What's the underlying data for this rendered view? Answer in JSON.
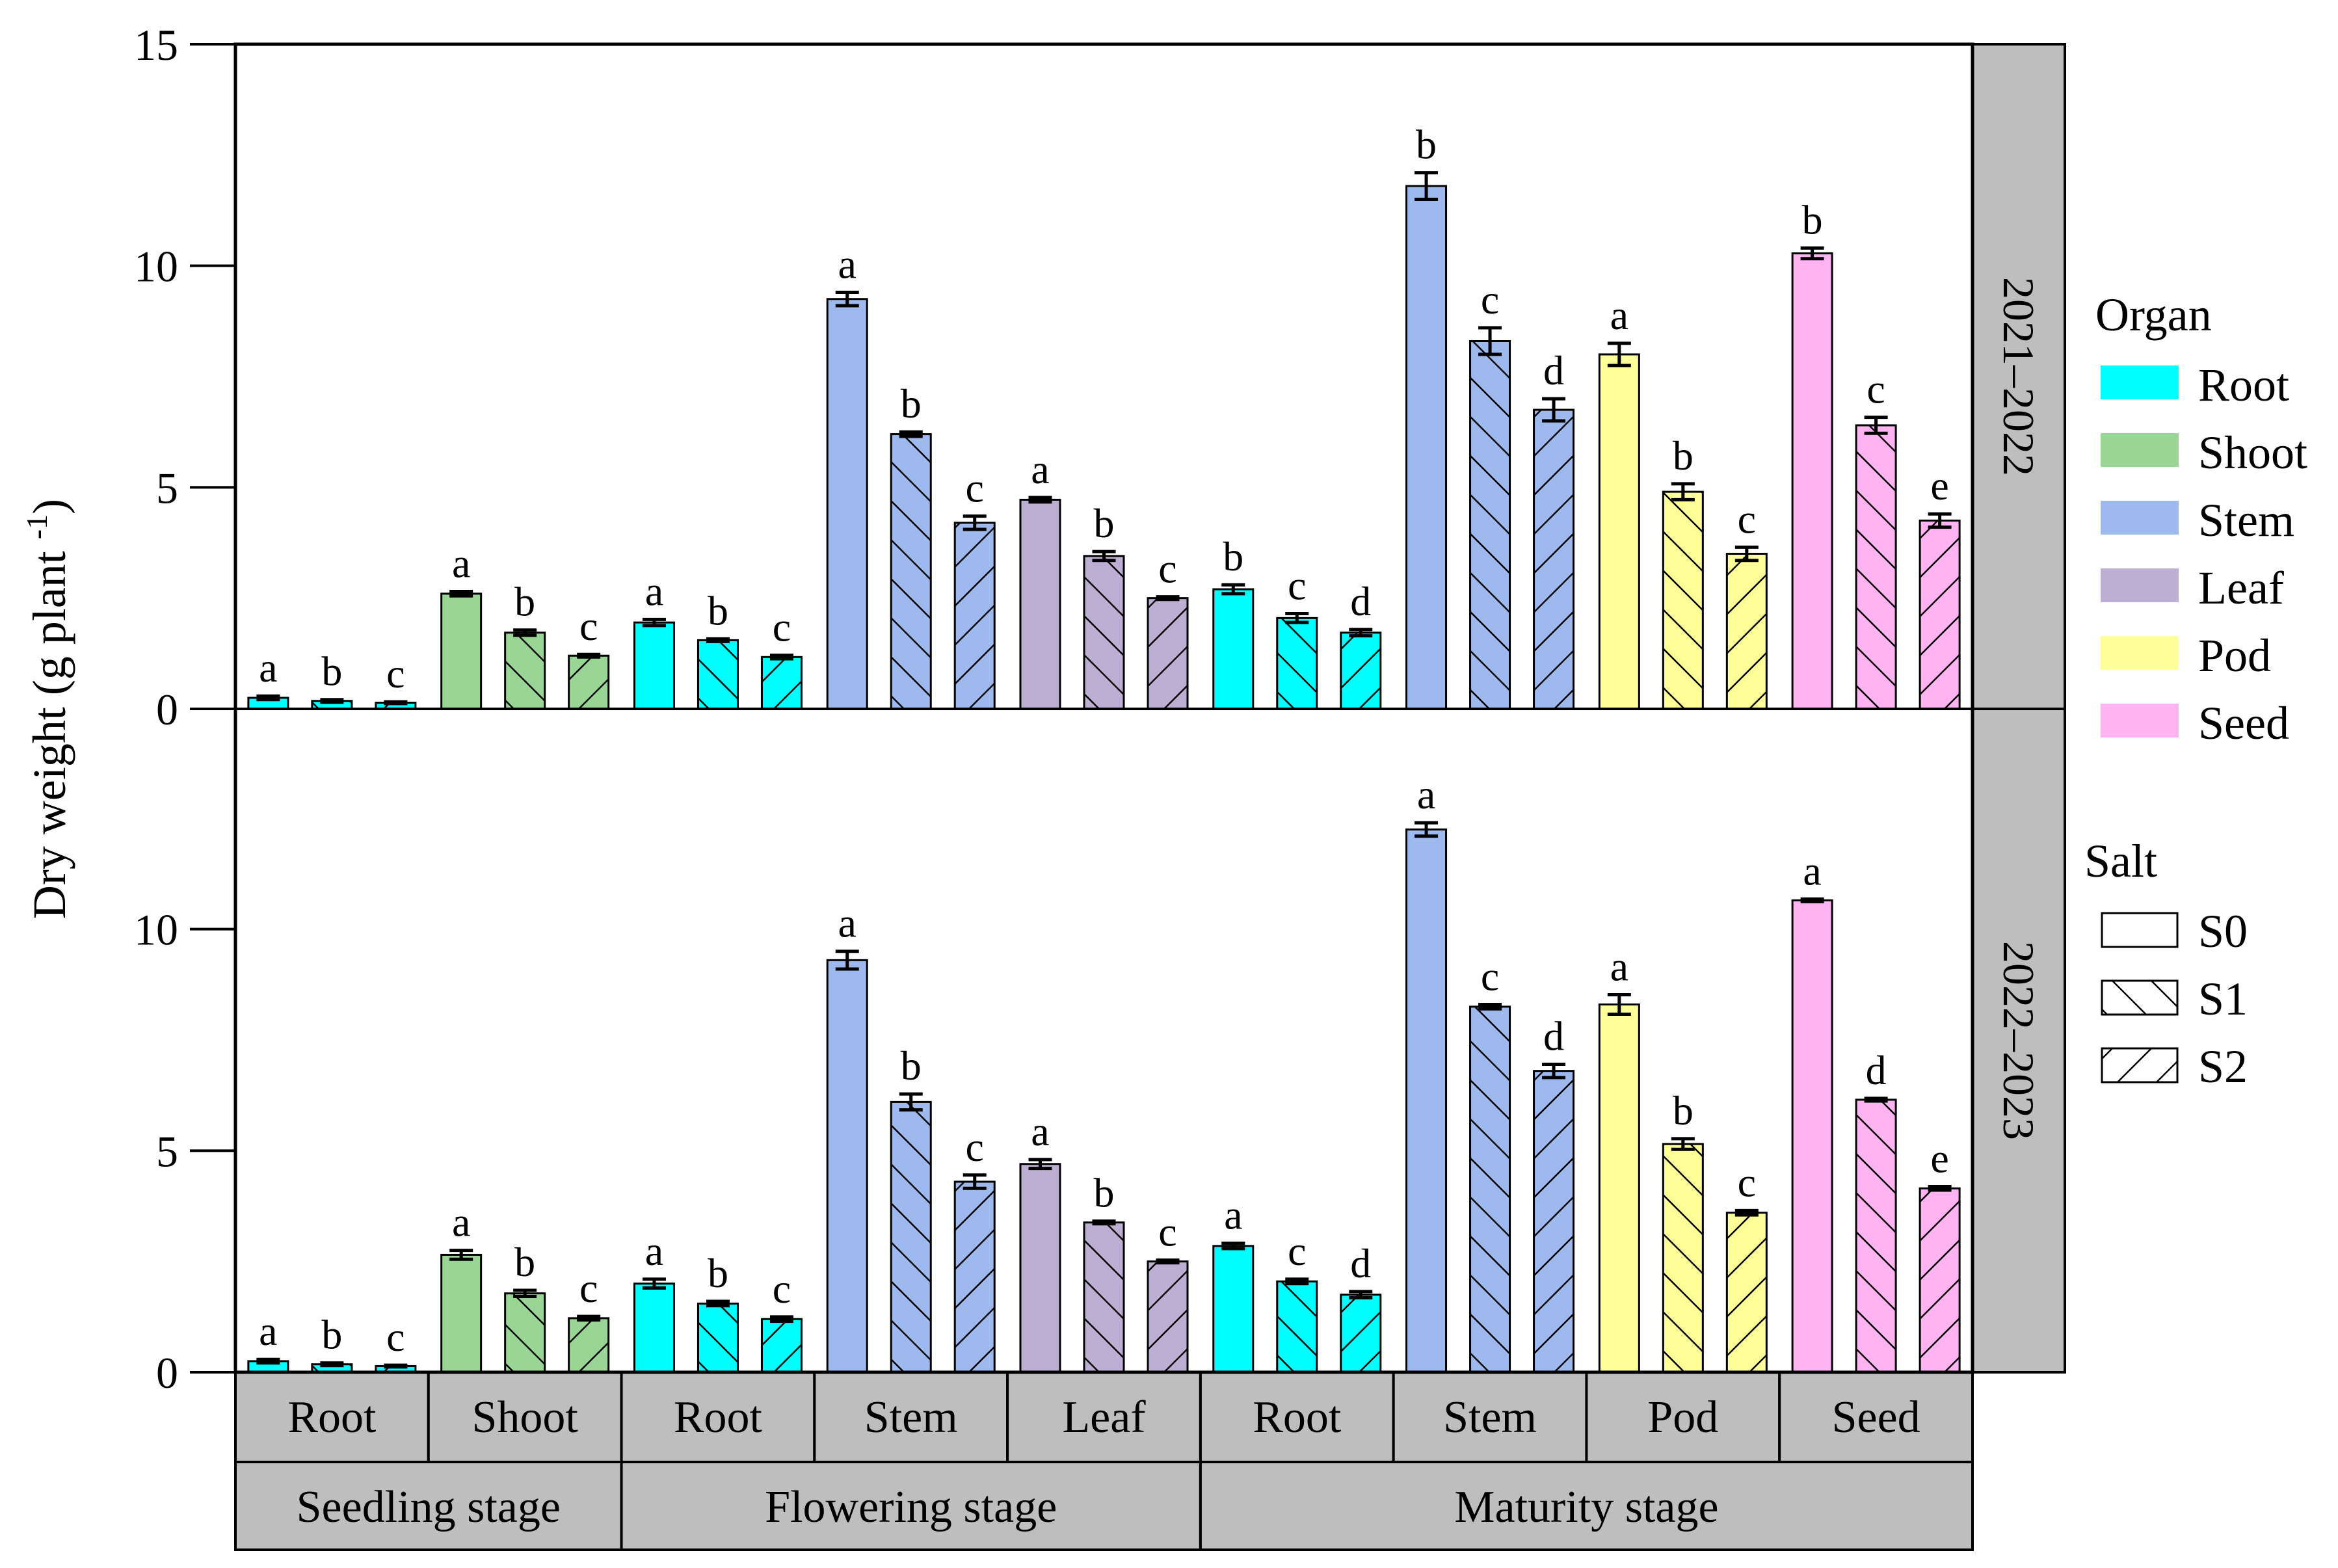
{
  "chart_data": {
    "type": "bar",
    "ylabel_main": "Dry weight (g plant",
    "ylabel_sup": "-1",
    "ylabel_end": ")",
    "ylim": [
      0,
      15
    ],
    "yticks": [
      "0",
      "5",
      "10",
      "15"
    ],
    "panels": [
      {
        "label": "2021–2022",
        "values": [
          0.25,
          0.18,
          0.14,
          2.6,
          1.72,
          1.2,
          1.95,
          1.55,
          1.17,
          9.25,
          6.2,
          4.2,
          4.72,
          3.45,
          2.5,
          2.7,
          2.05,
          1.72,
          11.8,
          8.3,
          6.75,
          8.0,
          4.9,
          3.5,
          10.28,
          6.4,
          4.25
        ],
        "errors": [
          0.04,
          0.03,
          0.02,
          0.05,
          0.06,
          0.03,
          0.07,
          0.03,
          0.04,
          0.15,
          0.05,
          0.15,
          0.05,
          0.1,
          0.03,
          0.1,
          0.1,
          0.07,
          0.3,
          0.3,
          0.25,
          0.25,
          0.18,
          0.15,
          0.12,
          0.18,
          0.15
        ],
        "letters": [
          "a",
          "b",
          "c",
          "a",
          "b",
          "c",
          "a",
          "b",
          "c",
          "a",
          "b",
          "c",
          "a",
          "b",
          "c",
          "b",
          "c",
          "d",
          "b",
          "c",
          "d",
          "a",
          "b",
          "c",
          "b",
          "c",
          "e"
        ]
      },
      {
        "label": "2022–2023",
        "values": [
          0.25,
          0.18,
          0.14,
          2.65,
          1.78,
          1.22,
          2.0,
          1.55,
          1.2,
          9.3,
          6.1,
          4.3,
          4.7,
          3.38,
          2.5,
          2.85,
          2.05,
          1.75,
          12.25,
          8.25,
          6.8,
          8.3,
          5.15,
          3.6,
          10.65,
          6.15,
          4.15
        ],
        "errors": [
          0.04,
          0.03,
          0.02,
          0.1,
          0.07,
          0.04,
          0.1,
          0.05,
          0.05,
          0.2,
          0.18,
          0.15,
          0.1,
          0.03,
          0.03,
          0.06,
          0.05,
          0.07,
          0.15,
          0.05,
          0.15,
          0.22,
          0.12,
          0.05,
          0.03,
          0.03,
          0.04
        ],
        "letters": [
          "a",
          "b",
          "c",
          "a",
          "b",
          "c",
          "a",
          "b",
          "c",
          "a",
          "b",
          "c",
          "a",
          "b",
          "c",
          "a",
          "c",
          "d",
          "a",
          "c",
          "d",
          "a",
          "b",
          "c",
          "a",
          "d",
          "e"
        ]
      }
    ],
    "organ_groups": [
      {
        "label": "Root",
        "organ": "Root"
      },
      {
        "label": "Shoot",
        "organ": "Shoot"
      },
      {
        "label": "Root",
        "organ": "Root"
      },
      {
        "label": "Stem",
        "organ": "Stem"
      },
      {
        "label": "Leaf",
        "organ": "Leaf"
      },
      {
        "label": "Root",
        "organ": "Root"
      },
      {
        "label": "Stem",
        "organ": "Stem"
      },
      {
        "label": "Pod",
        "organ": "Pod"
      },
      {
        "label": "Seed",
        "organ": "Seed"
      }
    ],
    "stages": [
      {
        "label": "Seedling stage",
        "groups": 2
      },
      {
        "label": "Flowering stage",
        "groups": 3
      },
      {
        "label": "Maturity stage",
        "groups": 4
      }
    ],
    "salt_levels": [
      "S0",
      "S1",
      "S2"
    ],
    "organ_legend_title": "Organ",
    "organ_legend": [
      {
        "name": "Root",
        "color": "#00FFFF"
      },
      {
        "name": "Shoot",
        "color": "#99D594"
      },
      {
        "name": "Stem",
        "color": "#9DB9EE"
      },
      {
        "name": "Leaf",
        "color": "#BDAED3"
      },
      {
        "name": "Pod",
        "color": "#FFFF99"
      },
      {
        "name": "Seed",
        "color": "#FFB3F1"
      }
    ],
    "salt_legend_title": "Salt",
    "salt_legend": [
      "S0",
      "S1",
      "S2"
    ],
    "strip_color": "#BEBEBE"
  }
}
